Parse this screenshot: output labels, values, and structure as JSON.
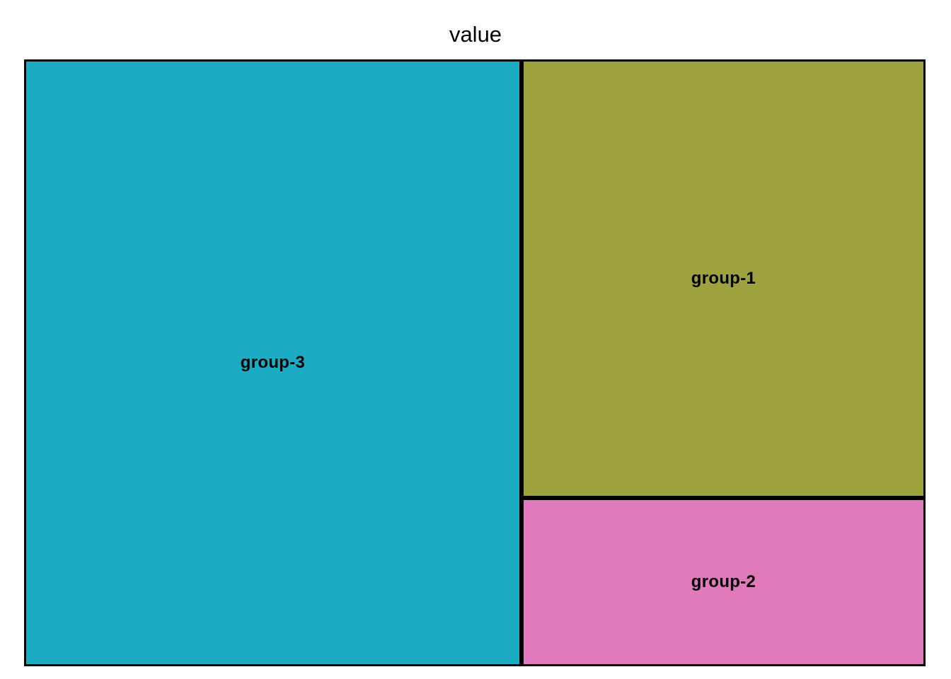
{
  "figure": {
    "background_color": "#FFFFFF",
    "border_color": "#000000"
  },
  "chart_data": {
    "type": "treemap",
    "title": "value",
    "xlabel": "",
    "ylabel": "",
    "legend": "none",
    "grid": false,
    "layout_hint": "group-3 fills the full-height left column (~55% of width); right column split with group-1 on top and group-2 on bottom; thick black tile borders; bold black labels centered in each tile",
    "items": [
      {
        "label": "group-3",
        "color": "#1BACC4",
        "area_fraction": 0.55
      },
      {
        "label": "group-1",
        "color": "#9DA23F",
        "area_fraction": 0.325
      },
      {
        "label": "group-2",
        "color": "#E07ABB",
        "area_fraction": 0.125
      }
    ]
  }
}
